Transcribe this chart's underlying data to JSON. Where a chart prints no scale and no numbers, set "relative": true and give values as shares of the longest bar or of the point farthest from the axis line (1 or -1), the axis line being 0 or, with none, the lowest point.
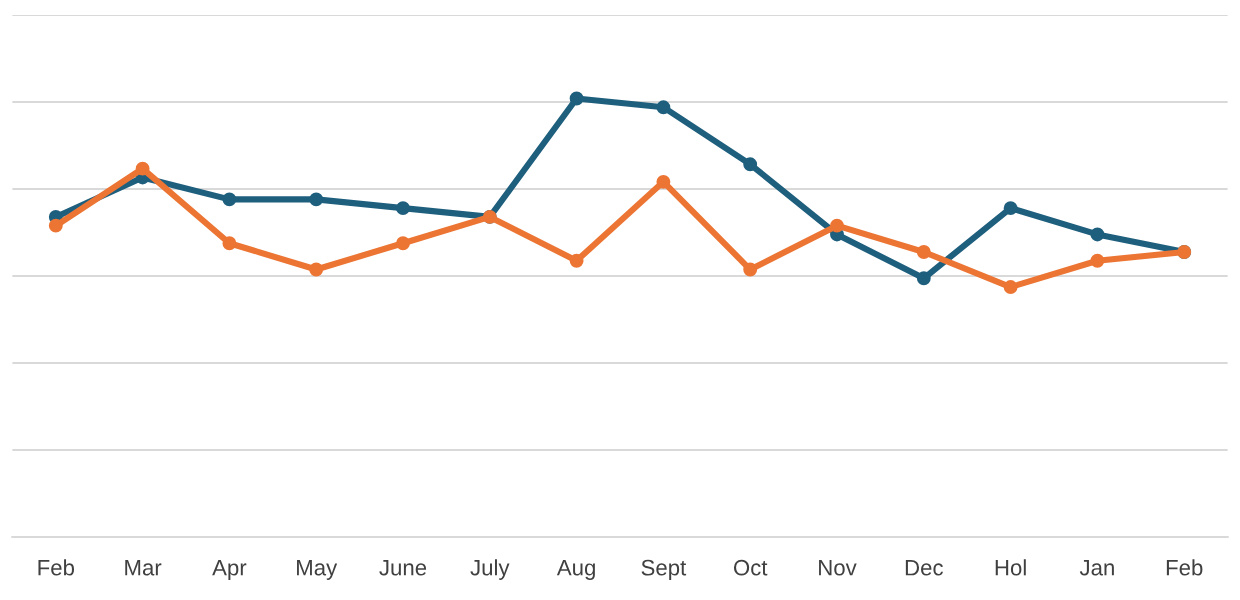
{
  "chart_data": {
    "type": "line",
    "relative": true,
    "grid": "y",
    "marker": "circle",
    "line_style": "solid",
    "legend": false,
    "categories": [
      "Feb",
      "Mar",
      "Apr",
      "May",
      "June",
      "July",
      "Aug",
      "Sept",
      "Oct",
      "Nov",
      "Dec",
      "Hol",
      "Jan",
      "Feb"
    ],
    "series": [
      {
        "color": "#1f5f7e",
        "values": [
          0.73,
          0.82,
          0.77,
          0.77,
          0.75,
          0.73,
          1.0,
          0.98,
          0.85,
          0.69,
          0.59,
          0.75,
          0.69,
          0.65
        ]
      },
      {
        "color": "#ec7534",
        "values": [
          0.71,
          0.84,
          0.67,
          0.61,
          0.67,
          0.73,
          0.63,
          0.81,
          0.61,
          0.71,
          0.65,
          0.57,
          0.63,
          0.65
        ]
      }
    ]
  }
}
